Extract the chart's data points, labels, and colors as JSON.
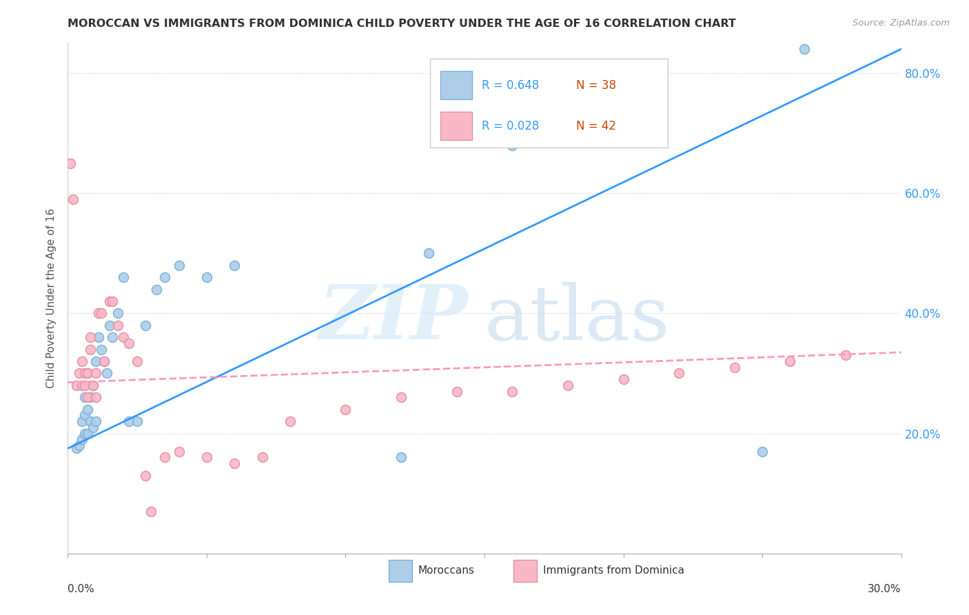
{
  "title": "MOROCCAN VS IMMIGRANTS FROM DOMINICA CHILD POVERTY UNDER THE AGE OF 16 CORRELATION CHART",
  "source": "Source: ZipAtlas.com",
  "ylabel": "Child Poverty Under the Age of 16",
  "xlim": [
    0.0,
    0.3
  ],
  "ylim": [
    0.0,
    0.85
  ],
  "blue_scatter_color": "#aecde8",
  "blue_edge_color": "#7ab3d8",
  "pink_scatter_color": "#f9b8c8",
  "pink_edge_color": "#e88fa4",
  "blue_line_color": "#3399ff",
  "pink_line_color": "#ff99bb",
  "blue_line_x": [
    0.0,
    0.3
  ],
  "blue_line_y": [
    0.175,
    0.84
  ],
  "pink_line_x": [
    0.0,
    0.3
  ],
  "pink_line_y": [
    0.285,
    0.335
  ],
  "moroccans_x": [
    0.003,
    0.004,
    0.005,
    0.005,
    0.006,
    0.006,
    0.006,
    0.007,
    0.007,
    0.007,
    0.008,
    0.008,
    0.009,
    0.009,
    0.01,
    0.01,
    0.011,
    0.012,
    0.013,
    0.014,
    0.015,
    0.016,
    0.018,
    0.02,
    0.022,
    0.025,
    0.028,
    0.032,
    0.035,
    0.04,
    0.05,
    0.06,
    0.12,
    0.155,
    0.25,
    0.265,
    0.13,
    0.16
  ],
  "moroccans_y": [
    0.175,
    0.18,
    0.19,
    0.22,
    0.2,
    0.23,
    0.26,
    0.2,
    0.24,
    0.3,
    0.22,
    0.26,
    0.21,
    0.28,
    0.22,
    0.32,
    0.36,
    0.34,
    0.32,
    0.3,
    0.38,
    0.36,
    0.4,
    0.46,
    0.22,
    0.22,
    0.38,
    0.44,
    0.46,
    0.48,
    0.46,
    0.48,
    0.16,
    0.73,
    0.17,
    0.84,
    0.5,
    0.68
  ],
  "dominica_x": [
    0.001,
    0.002,
    0.003,
    0.004,
    0.005,
    0.005,
    0.006,
    0.006,
    0.007,
    0.007,
    0.008,
    0.008,
    0.009,
    0.01,
    0.01,
    0.011,
    0.012,
    0.013,
    0.015,
    0.016,
    0.018,
    0.02,
    0.022,
    0.025,
    0.028,
    0.03,
    0.035,
    0.04,
    0.05,
    0.06,
    0.07,
    0.08,
    0.1,
    0.12,
    0.14,
    0.16,
    0.18,
    0.2,
    0.22,
    0.24,
    0.26,
    0.28
  ],
  "dominica_y": [
    0.65,
    0.59,
    0.28,
    0.3,
    0.28,
    0.32,
    0.3,
    0.28,
    0.26,
    0.3,
    0.34,
    0.36,
    0.28,
    0.26,
    0.3,
    0.4,
    0.4,
    0.32,
    0.42,
    0.42,
    0.38,
    0.36,
    0.35,
    0.32,
    0.13,
    0.07,
    0.16,
    0.17,
    0.16,
    0.15,
    0.16,
    0.22,
    0.24,
    0.26,
    0.27,
    0.27,
    0.28,
    0.29,
    0.3,
    0.31,
    0.32,
    0.33
  ],
  "legend_r1": "R = 0.648",
  "legend_n1": "N = 38",
  "legend_r2": "R = 0.028",
  "legend_n2": "N = 42",
  "ytick_vals": [
    0.2,
    0.4,
    0.6,
    0.8
  ],
  "ytick_labels": [
    "20.0%",
    "40.0%",
    "60.0%",
    "80.0%"
  ],
  "xtick_vals": [
    0.0,
    0.05,
    0.1,
    0.15,
    0.2,
    0.25,
    0.3
  ],
  "watermark_zip": "ZIP",
  "watermark_atlas": "atlas",
  "legend_label_blue": "Moroccans",
  "legend_label_pink": "Immigrants from Dominica"
}
